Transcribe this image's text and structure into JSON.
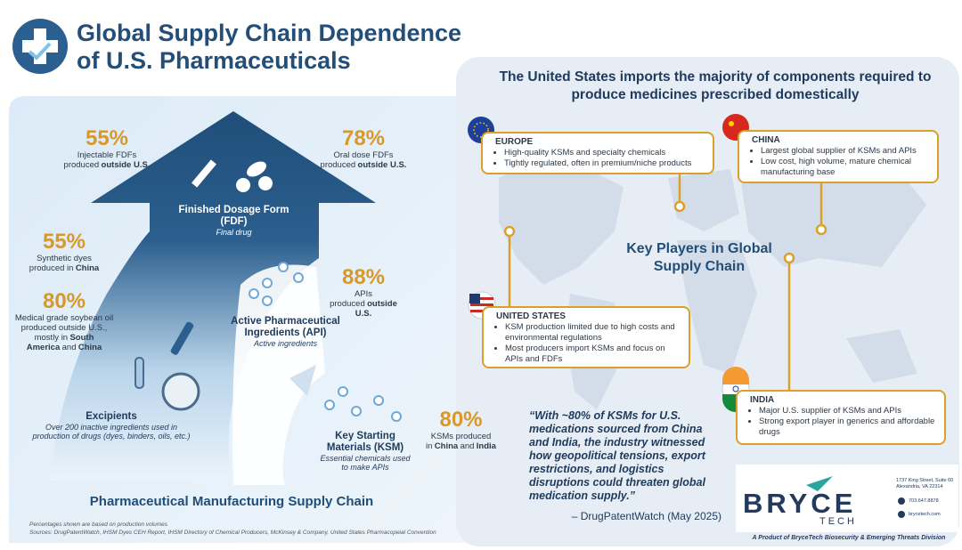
{
  "header": {
    "title_lines": [
      "Global Supply Chain Dependence",
      "of U.S. Pharmaceuticals"
    ]
  },
  "supply_chain": {
    "caption": "Pharmaceutical Manufacturing Supply Chain",
    "stats": [
      {
        "value": "55%",
        "description": [
          {
            "text": "Injectable FDFs produced",
            "bold": false
          },
          {
            "text": "outside U.S.",
            "bold": true
          }
        ]
      },
      {
        "value": "78%",
        "description": [
          {
            "text": "Oral dose FDFs produced",
            "bold": false
          },
          {
            "text": "outside U.S.",
            "bold": true
          }
        ]
      },
      {
        "value": "55%",
        "description": [
          {
            "text": "Synthetic dyes produced in",
            "bold": false
          },
          {
            "text": "China",
            "bold": true
          }
        ]
      },
      {
        "value": "80%",
        "description": [
          {
            "text": "Medical grade soybean oil produced outside U.S., mostly in",
            "bold": false
          },
          {
            "text": "South America",
            "bold": true
          },
          {
            "text": "and",
            "bold": false
          },
          {
            "text": "China",
            "bold": true
          }
        ]
      },
      {
        "value": "88%",
        "description": [
          {
            "text": "APIs produced",
            "bold": false
          },
          {
            "text": "outside U.S.",
            "bold": true
          }
        ]
      },
      {
        "value": "80%",
        "description": [
          {
            "text": "KSMs produced in",
            "bold": false
          },
          {
            "text": "China",
            "bold": true
          },
          {
            "text": "and",
            "bold": false
          },
          {
            "text": "India",
            "bold": true
          }
        ]
      }
    ],
    "stages": [
      {
        "name": "Finished Dosage Form (FDF)",
        "note": "Final drug"
      },
      {
        "name": "Active Pharmaceutical Ingredients (API)",
        "note": "Active ingredients"
      },
      {
        "name": "Key Starting Materials (KSM)",
        "note": "Essential chemicals used to make APIs"
      },
      {
        "name": "Excipients",
        "note": "Over 200 inactive ingredients used in production of drugs (dyes, binders, oils, etc.)"
      }
    ],
    "footnotes": [
      "Percentages shown are based on production volumes",
      "Sources: DrugPatentWatch, IHSM Dyes CEH Report, IHSM Directory of Chemical Producers, McKinsey & Company, United States Pharmacopeial Convention"
    ]
  },
  "global": {
    "headline": "The United States imports the majority of components required to produce medicines prescribed domestically",
    "map_label": "Key Players in Global Supply Chain",
    "regions": [
      {
        "name": "EUROPE",
        "bullets": [
          "High-quality KSMs and specialty chemicals",
          "Tightly regulated, often in premium/niche products"
        ]
      },
      {
        "name": "CHINA",
        "bullets": [
          "Largest global supplier of KSMs and APIs",
          "Low cost, high volume, mature chemical manufacturing base"
        ]
      },
      {
        "name": "UNITED STATES",
        "bullets": [
          "KSM production limited due to high costs and environmental regulations",
          "Most producers import KSMs and focus on APIs and FDFs"
        ]
      },
      {
        "name": "INDIA",
        "bullets": [
          "Major U.S. supplier of KSMs and APIs",
          "Strong export player in generics and affordable drugs"
        ]
      }
    ],
    "quote": {
      "text": "“With ~80% of KSMs for U.S. medications sourced from China and India, the industry witnessed how geopolitical tensions, export restrictions, and logistics disruptions could threaten global medication supply.”",
      "attribution": "– DrugPatentWatch (May 2025)"
    }
  },
  "footer": {
    "logo_word": "BRYCE",
    "logo_sub": "TECH",
    "address": [
      "1737 King Street, Suite 60",
      "Alexandria, VA 22314"
    ],
    "phone": "703.647.8878",
    "web": "brycetech.com",
    "tagline": "A Product of BryceTech Biosecurity & Emerging Threats Division"
  }
}
